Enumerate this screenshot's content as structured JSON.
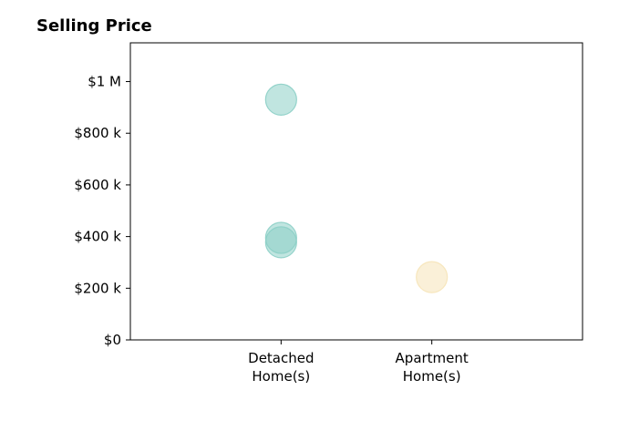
{
  "chart_data": {
    "type": "scatter",
    "title": "Selling Price",
    "xlabel": "",
    "ylabel": "",
    "categories": [
      [
        "Detached",
        "Home(s)"
      ],
      [
        "Apartment",
        "Home(s)"
      ]
    ],
    "x_range": [
      -1,
      2
    ],
    "ylim": [
      0,
      1150000
    ],
    "y_ticks": [
      0,
      200000,
      400000,
      600000,
      800000,
      1000000
    ],
    "y_tick_labels": [
      "$0",
      "$200 k",
      "$400 k",
      "$600 k",
      "$800 k",
      "$1 M"
    ],
    "grid": false,
    "legend": "none",
    "series": [
      {
        "color": "#8ccfc7",
        "points": [
          {
            "category": 0,
            "y": 930000
          },
          {
            "category": 0,
            "y": 395000
          },
          {
            "category": 0,
            "y": 378000
          }
        ]
      },
      {
        "color": "#f6e4b8",
        "points": [
          {
            "category": 1,
            "y": 243000
          }
        ]
      }
    ],
    "marker_opacity": 0.55
  }
}
